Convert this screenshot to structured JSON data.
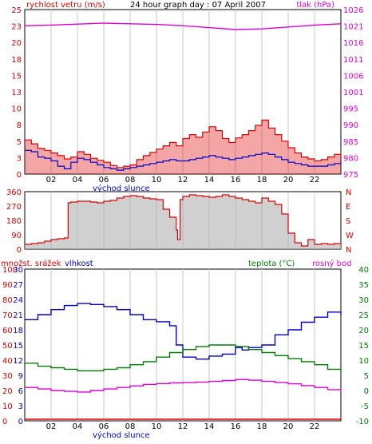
{
  "colors": {
    "speed": "#e00000",
    "speed_fill": "#e00000",
    "avg": "#0000cc",
    "pressure": "#dd00dd",
    "direction": "#e00000",
    "direction_fill": "#b0b0b0",
    "humidity": "#0000cc",
    "temperature": "#008000",
    "dewpoint": "#dd00dd",
    "precip": "#e00000",
    "frame": "#000000",
    "grid": "#c8c8c8"
  },
  "chart_data": [
    {
      "id": "wind",
      "type": "line",
      "title": "24 hour graph day : 07 April 2007",
      "ylabel_left": "rychlost vetru (m/s)",
      "ylabel_right": "tlak (hPa)",
      "xlim": [
        0,
        24
      ],
      "ylim": [
        0,
        25
      ],
      "y2lim": [
        975,
        1026
      ],
      "x_ticks": [
        "02",
        "04",
        "06",
        "08",
        "10",
        "12",
        "14",
        "16",
        "18",
        "20",
        "22"
      ],
      "sunrise_label": "východ slunce",
      "y_ticks": [
        "0",
        "3",
        "5",
        "8",
        "10",
        "13",
        "15",
        "18",
        "20",
        "23",
        "25"
      ],
      "y2_ticks": [
        "975",
        "980",
        "985",
        "990",
        "995",
        "1001",
        "1006",
        "1011",
        "1016",
        "1021",
        "1026"
      ],
      "series": [
        {
          "key": "speed",
          "x": [
            0,
            0.5,
            1,
            1.5,
            2,
            2.5,
            3,
            3.5,
            4,
            4.5,
            5,
            5.5,
            6,
            6.5,
            7,
            7.5,
            8,
            8.5,
            9,
            9.5,
            10,
            10.5,
            11,
            11.5,
            12,
            12.5,
            13,
            13.5,
            14,
            14.5,
            15,
            15.5,
            16,
            16.5,
            17,
            17.5,
            18,
            18.5,
            19,
            19.5,
            20,
            20.5,
            21,
            21.5,
            22,
            22.5,
            23,
            23.5,
            24
          ],
          "values": [
            5.2,
            4.6,
            3.9,
            3.6,
            3.2,
            2.8,
            2.3,
            2.6,
            3.4,
            3.0,
            2.4,
            2.1,
            1.8,
            1.3,
            1.0,
            1.2,
            1.4,
            2.2,
            2.8,
            3.3,
            3.8,
            4.3,
            4.8,
            4.3,
            5.4,
            6.0,
            5.6,
            6.4,
            7.2,
            6.6,
            5.4,
            4.8,
            5.5,
            6.0,
            6.6,
            7.4,
            8.2,
            7.0,
            6.0,
            5.0,
            4.0,
            3.2,
            2.6,
            2.3,
            2.0,
            2.2,
            2.6,
            3.0,
            3.2
          ]
        },
        {
          "key": "avg",
          "x": [
            0,
            0.5,
            1,
            1.5,
            2,
            2.5,
            3,
            3.5,
            4,
            4.5,
            5,
            5.5,
            6,
            6.5,
            7,
            7.5,
            8,
            8.5,
            9,
            9.5,
            10,
            10.5,
            11,
            11.5,
            12,
            12.5,
            13,
            13.5,
            14,
            14.5,
            15,
            15.5,
            16,
            16.5,
            17,
            17.5,
            18,
            18.5,
            19,
            19.5,
            20,
            20.5,
            21,
            21.5,
            22,
            22.5,
            23,
            23.5,
            24
          ],
          "values": [
            3.6,
            3.4,
            2.6,
            2.4,
            2.0,
            1.2,
            0.8,
            1.8,
            2.4,
            2.2,
            1.8,
            1.4,
            1.0,
            0.8,
            0.6,
            0.8,
            1.0,
            1.2,
            1.4,
            1.6,
            1.8,
            2.0,
            2.2,
            2.0,
            2.0,
            2.2,
            2.4,
            2.6,
            2.8,
            2.6,
            2.4,
            2.2,
            2.4,
            2.6,
            2.8,
            3.0,
            3.2,
            3.0,
            2.6,
            2.2,
            1.8,
            1.6,
            1.4,
            1.2,
            1.2,
            1.2,
            1.4,
            1.6,
            1.8
          ]
        },
        {
          "key": "pressure",
          "x": [
            0,
            2,
            4,
            6,
            8,
            10,
            12,
            14,
            16,
            18,
            20,
            22,
            24
          ],
          "values": [
            1021.0,
            1021.2,
            1021.5,
            1021.8,
            1021.6,
            1021.4,
            1021.0,
            1020.4,
            1019.8,
            1020.0,
            1020.6,
            1021.2,
            1021.6
          ]
        }
      ]
    },
    {
      "id": "direction",
      "type": "line",
      "xlim": [
        0,
        24
      ],
      "ylim": [
        0,
        360
      ],
      "y_ticks": [
        "0",
        "90",
        "180",
        "270",
        "360"
      ],
      "right_labels": [
        "N",
        "W",
        "S",
        "E",
        "N"
      ],
      "series": [
        {
          "key": "direction",
          "x": [
            0,
            0.5,
            1,
            1.5,
            2,
            2.5,
            3,
            3.2,
            3.3,
            3.5,
            4,
            4.5,
            5,
            5.5,
            6,
            6.5,
            7,
            7.5,
            8,
            8.5,
            9,
            9.5,
            10,
            10.5,
            11,
            11.5,
            11.6,
            11.8,
            12,
            12.5,
            13,
            13.5,
            14,
            14.5,
            15,
            15.5,
            16,
            16.5,
            17,
            17.5,
            18,
            18.5,
            19,
            19.5,
            20,
            20.5,
            21,
            21.5,
            22,
            22.5,
            23,
            23.5,
            24
          ],
          "values": [
            30,
            35,
            40,
            50,
            60,
            65,
            70,
            70,
            290,
            295,
            300,
            300,
            295,
            290,
            300,
            305,
            320,
            330,
            335,
            330,
            320,
            315,
            310,
            250,
            200,
            120,
            60,
            310,
            330,
            340,
            335,
            330,
            325,
            330,
            340,
            330,
            320,
            310,
            300,
            290,
            320,
            300,
            280,
            220,
            100,
            40,
            20,
            60,
            30,
            35,
            30,
            35,
            40
          ]
        }
      ]
    },
    {
      "id": "thermo",
      "type": "line",
      "ylabel_precip": "množst. srážek",
      "ylabel_humidity": "vlhkost",
      "ylabel_temp": "teplota (°C)",
      "ylabel_dew": "rosný bod",
      "xlim": [
        0,
        24
      ],
      "x_ticks": [
        "02",
        "04",
        "06",
        "08",
        "10",
        "12",
        "14",
        "16",
        "18",
        "20",
        "22"
      ],
      "sunrise_label": "východ slunce",
      "y_precip_ticks": [
        "0",
        "10",
        "20",
        "30",
        "40",
        "50",
        "60",
        "70",
        "80",
        "90",
        "100"
      ],
      "y_hum_ticks": [
        "0",
        "3",
        "6",
        "9",
        "12",
        "15",
        "18",
        "21",
        "24",
        "27",
        "30"
      ],
      "y_temp_ticks": [
        "-10",
        "-5",
        "0",
        "5",
        "10",
        "15",
        "20",
        "25",
        "30",
        "35",
        "40"
      ],
      "hum_ylim": [
        0,
        30
      ],
      "temp_ylim": [
        -10,
        40
      ],
      "series": [
        {
          "key": "humidity",
          "x": [
            0,
            1,
            2,
            3,
            4,
            5,
            6,
            7,
            8,
            9,
            10,
            11,
            11.5,
            12,
            13,
            14,
            15,
            16,
            16.5,
            17,
            18,
            19,
            20,
            21,
            22,
            23,
            24
          ],
          "values": [
            20.0,
            21.0,
            22.0,
            22.8,
            23.2,
            23.0,
            22.6,
            22.0,
            21.0,
            20.0,
            19.6,
            18.8,
            15.0,
            12.6,
            12.2,
            12.8,
            13.2,
            14.5,
            14.0,
            14.5,
            15.0,
            17.0,
            18.0,
            19.5,
            20.5,
            21.5,
            21.0
          ]
        },
        {
          "key": "temperature",
          "x": [
            0,
            1,
            2,
            3,
            4,
            5,
            6,
            7,
            8,
            9,
            10,
            11,
            12,
            13,
            14,
            15,
            16,
            17,
            18,
            19,
            20,
            21,
            22,
            23,
            24
          ],
          "values": [
            9.0,
            8.0,
            7.5,
            7.0,
            6.5,
            6.5,
            7.0,
            7.5,
            8.5,
            9.5,
            11.0,
            12.5,
            13.5,
            14.5,
            15.0,
            15.0,
            14.5,
            13.5,
            12.5,
            11.5,
            10.5,
            9.5,
            8.5,
            7.0,
            6.0
          ]
        },
        {
          "key": "dewpoint",
          "x": [
            0,
            1,
            2,
            3,
            4,
            5,
            6,
            7,
            8,
            9,
            10,
            11,
            12,
            13,
            14,
            15,
            16,
            17,
            18,
            19,
            20,
            21,
            22,
            23,
            24
          ],
          "values": [
            1.0,
            0.5,
            0.0,
            -0.3,
            -0.5,
            0.0,
            0.5,
            1.0,
            1.5,
            2.0,
            2.3,
            2.5,
            2.6,
            2.8,
            3.0,
            3.3,
            3.6,
            3.4,
            3.0,
            2.6,
            2.2,
            1.6,
            1.0,
            0.3,
            -0.3
          ]
        },
        {
          "key": "precip",
          "x": [
            0,
            24
          ],
          "values": [
            0,
            0
          ]
        }
      ]
    }
  ]
}
